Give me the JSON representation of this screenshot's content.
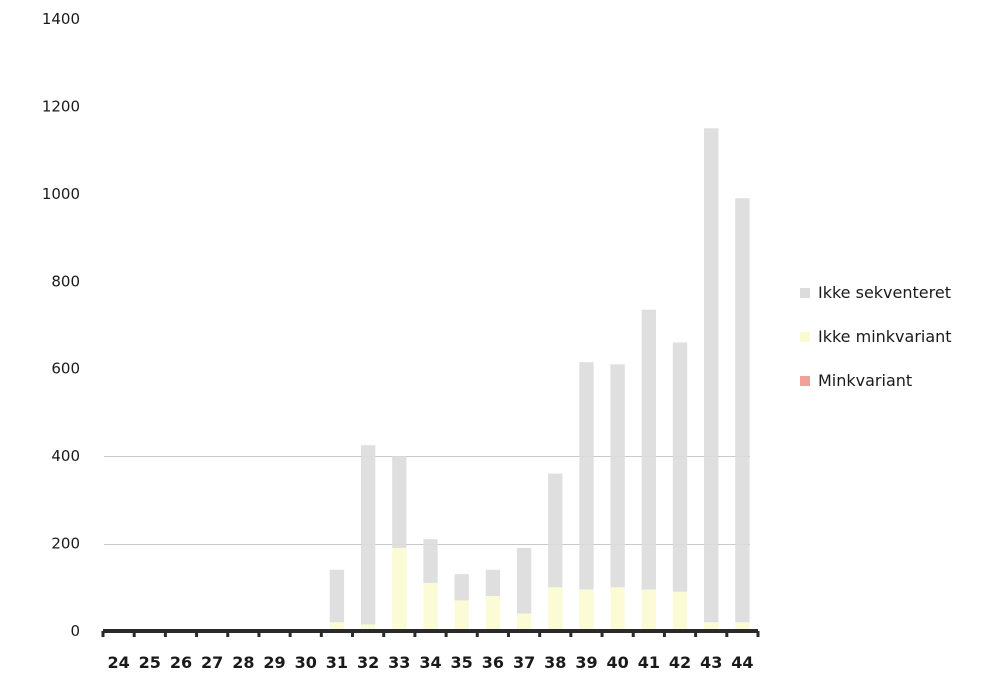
{
  "chart_data": {
    "type": "bar",
    "stacked": true,
    "categories": [
      "24",
      "25",
      "26",
      "27",
      "28",
      "29",
      "30",
      "31",
      "32",
      "33",
      "34",
      "35",
      "36",
      "37",
      "38",
      "39",
      "40",
      "41",
      "42",
      "43",
      "44"
    ],
    "series": [
      {
        "name": "Minkvariant",
        "color": "#f4a09a",
        "values": [
          0,
          0,
          0,
          0,
          0,
          0,
          0,
          0,
          0,
          0,
          0,
          0,
          0,
          0,
          0,
          0,
          0,
          0,
          0,
          0,
          0
        ]
      },
      {
        "name": "Ikke minkvariant",
        "color": "#fbfbd2",
        "values": [
          0,
          0,
          0,
          0,
          0,
          0,
          0,
          20,
          15,
          190,
          110,
          70,
          80,
          40,
          100,
          95,
          100,
          95,
          90,
          20,
          20
        ]
      },
      {
        "name": "Ikke sekventeret",
        "color": "#dcdcdc",
        "values": [
          0,
          0,
          0,
          0,
          0,
          0,
          0,
          120,
          410,
          210,
          100,
          60,
          60,
          150,
          260,
          520,
          510,
          640,
          570,
          1130,
          970
        ]
      }
    ],
    "yticks": [
      0,
      200,
      400,
      600,
      800,
      1000,
      1200,
      1400
    ],
    "ylim": [
      0,
      1400
    ],
    "legend_position": "right",
    "grid": false
  }
}
